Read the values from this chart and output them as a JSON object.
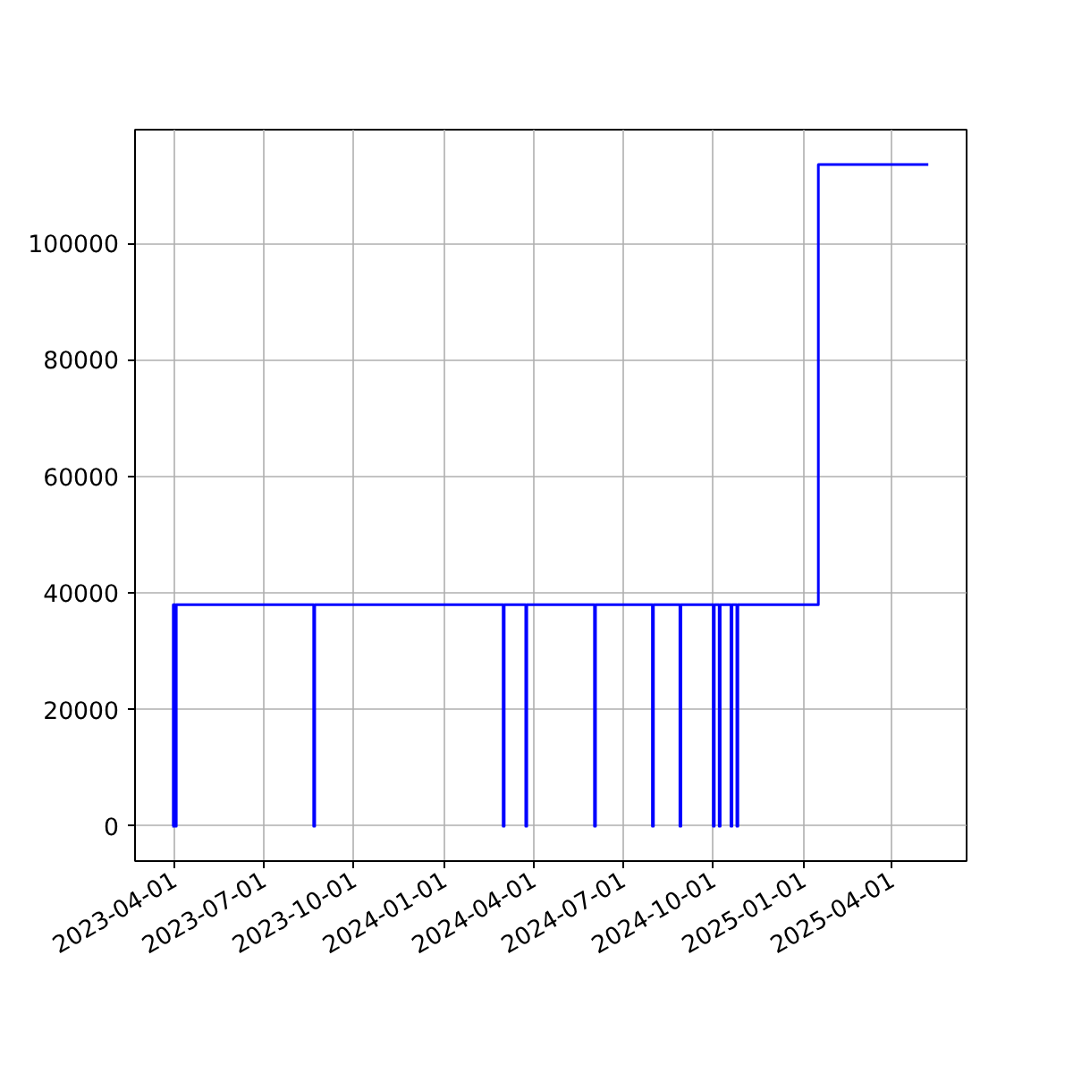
{
  "chart_data": {
    "type": "step",
    "grid": true,
    "line_style": "solid",
    "xlim": [
      "2023-02-20",
      "2025-06-16"
    ],
    "ylim": [
      -6000,
      119500
    ],
    "xticks": [
      {
        "value": "2023-04-01",
        "label": "2023-04-01"
      },
      {
        "value": "2023-07-01",
        "label": "2023-07-01"
      },
      {
        "value": "2023-10-01",
        "label": "2023-10-01"
      },
      {
        "value": "2024-01-01",
        "label": "2024-01-01"
      },
      {
        "value": "2024-04-01",
        "label": "2024-04-01"
      },
      {
        "value": "2024-07-01",
        "label": "2024-07-01"
      },
      {
        "value": "2024-10-01",
        "label": "2024-10-01"
      },
      {
        "value": "2025-01-01",
        "label": "2025-01-01"
      },
      {
        "value": "2025-04-01",
        "label": "2025-04-01"
      }
    ],
    "yticks": [
      0,
      20000,
      40000,
      60000,
      80000,
      100000
    ],
    "x": [
      "2023-03-30",
      "2023-03-31",
      "2023-04-02",
      "2023-04-03",
      "2023-08-21",
      "2023-08-22",
      "2024-03-01",
      "2024-03-02",
      "2024-03-24",
      "2024-03-25",
      "2024-06-02",
      "2024-06-03",
      "2024-07-31",
      "2024-08-01",
      "2024-08-28",
      "2024-08-29",
      "2024-10-01",
      "2024-10-02",
      "2024-10-07",
      "2024-10-08",
      "2024-10-19",
      "2024-10-20",
      "2024-10-25",
      "2024-10-26",
      "2025-01-16",
      "2025-05-08"
    ],
    "series": [
      {
        "color": "#0000ff",
        "values": [
          0,
          38000,
          0,
          38000,
          0,
          38000,
          0,
          38000,
          0,
          38000,
          0,
          38000,
          0,
          38000,
          0,
          38000,
          0,
          38000,
          0,
          38000,
          0,
          38000,
          0,
          38000,
          113500,
          113500
        ]
      }
    ]
  }
}
